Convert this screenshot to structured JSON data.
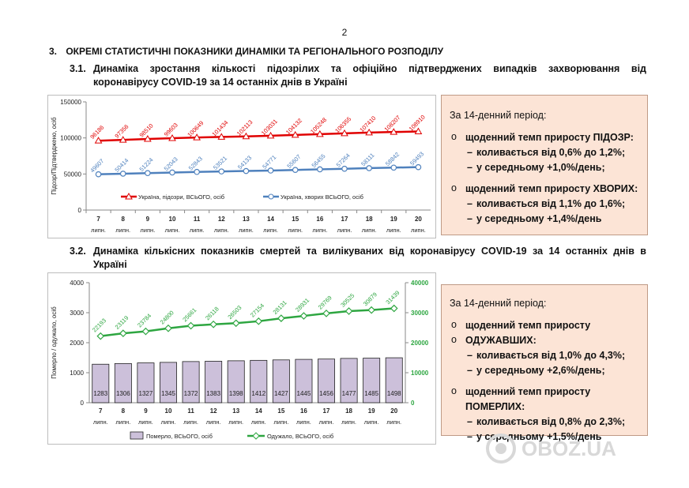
{
  "page_number": "2",
  "section": {
    "number": "3.",
    "title": "ОКРЕМІ СТАТИСТИЧНІ ПОКАЗНИКИ ДИНАМІКИ ТА РЕГІОНАЛЬНОГО РОЗПОДІЛУ"
  },
  "sub1": {
    "number": "3.1.",
    "line1": "Динаміка зростання кількості підозрілих та офіційно підтверджених випадків захворювання від",
    "line2": "коронавірусу COVID-19 за 14 останніх днів в Україні"
  },
  "sub2": {
    "number": "3.2.",
    "line1": "Динаміка кількісних показників смертей та вилікуваних від коронавірусу COVID-19 за 14 останніх днів в",
    "line2": "Україні"
  },
  "info1": {
    "period": "За 14-денний період:",
    "b1": "щоденний темп приросту ПІДОЗР:",
    "b1_d1": "коливається від 0,6% до 1,2%;",
    "b1_d2": "у середньому +1,0%/день;",
    "b2": "щоденний темп приросту ХВОРИХ:",
    "b2_d1": "коливається від 1,1% до 1,6%;",
    "b2_d2": "у середньому +1,4%/день"
  },
  "info2": {
    "period": "За 14-денний період:",
    "b1_a": "щоденний темп приросту",
    "b1_b": "ОДУЖАВШИХ:",
    "b1_d1": "коливається від 1,0% до 4,3%;",
    "b1_d2": "у середньому +2,6%/день;",
    "b2": "щоденний темп приросту ПОМЕРЛИХ:",
    "b2_d1": "коливається від 0,8% до 2,3%;",
    "b2_d2": "у середньому +1,5%/день"
  },
  "watermark": "OBOZ.UA",
  "colors": {
    "suspected": "#e00000",
    "confirmed": "#4f81bd",
    "deaths_fill": "#ccc0da",
    "recovered": "#2ea641",
    "info_bg": "#fce4d6"
  },
  "chart_data": [
    {
      "type": "line",
      "ylabel": "Підозр/Підтверджено, осіб",
      "ylim": [
        0,
        150000
      ],
      "yticks": [
        "0",
        "50000",
        "100000",
        "150000"
      ],
      "yticks_values": [
        0,
        50000,
        100000,
        150000
      ],
      "x_days": [
        "7",
        "8",
        "9",
        "10",
        "11",
        "12",
        "13",
        "14",
        "15",
        "16",
        "17",
        "18",
        "19",
        "20"
      ],
      "x_month": "липн.",
      "series": [
        {
          "name": "Україна, підозри, ВСЬОГО, осіб",
          "color": "#e00000",
          "values": [
            96186,
            97356,
            98510,
            99603,
            100649,
            101434,
            102113,
            103031,
            104132,
            105248,
            106355,
            107410,
            108207,
            108910
          ],
          "labels": [
            "96186",
            "97356",
            "98510",
            "99603",
            "100649",
            "101434",
            "102113",
            "103031",
            "104132",
            "105248",
            "106355",
            "107410",
            "108207",
            "108910"
          ]
        },
        {
          "name": "Україна, хворих ВСЬОГО, осіб",
          "color": "#4f81bd",
          "values": [
            49607,
            50414,
            51224,
            52043,
            52843,
            53521,
            54133,
            54771,
            55607,
            56455,
            57264,
            58111,
            58842,
            59493
          ],
          "labels": [
            "49607",
            "50414",
            "51224",
            "52043",
            "52843",
            "53521",
            "54133",
            "54771",
            "55607",
            "56455",
            "57264",
            "58111",
            "58842",
            "59493"
          ]
        }
      ]
    },
    {
      "type": "bar",
      "ylabel": "Померло / одужало, осіб",
      "ylim": [
        0,
        4000
      ],
      "yticks": [
        "0",
        "1000",
        "2000",
        "3000",
        "4000"
      ],
      "yticks_values": [
        0,
        1000,
        2000,
        3000,
        4000
      ],
      "y2lim": [
        0,
        40000
      ],
      "y2ticks": [
        "0",
        "10000",
        "20000",
        "30000",
        "40000"
      ],
      "y2ticks_values": [
        0,
        10000,
        20000,
        30000,
        40000
      ],
      "x_days": [
        "7",
        "8",
        "9",
        "10",
        "11",
        "12",
        "13",
        "14",
        "15",
        "16",
        "17",
        "18",
        "19",
        "20"
      ],
      "x_month": "липн.",
      "series": [
        {
          "name": "Померло, ВСЬОГО, осіб",
          "type": "bar",
          "axis": "left",
          "values": [
            1283,
            1306,
            1327,
            1345,
            1372,
            1383,
            1398,
            1412,
            1427,
            1445,
            1456,
            1477,
            1485,
            1498
          ],
          "labels": [
            "1283",
            "1306",
            "1327",
            "1345",
            "1372",
            "1383",
            "1398",
            "1412",
            "1427",
            "1445",
            "1456",
            "1477",
            "1485",
            "1498"
          ]
        },
        {
          "name": "Одужало, ВСЬОГО, осіб",
          "type": "line",
          "axis": "right",
          "values": [
            22193,
            23119,
            23784,
            24800,
            25661,
            26118,
            26503,
            27154,
            28131,
            28931,
            29769,
            30525,
            30879,
            31439
          ],
          "labels": [
            "22193",
            "23119",
            "23784",
            "24800",
            "25661",
            "26118",
            "26503",
            "27154",
            "28131",
            "28931",
            "29769",
            "30525",
            "30879",
            "31439"
          ]
        }
      ]
    }
  ]
}
